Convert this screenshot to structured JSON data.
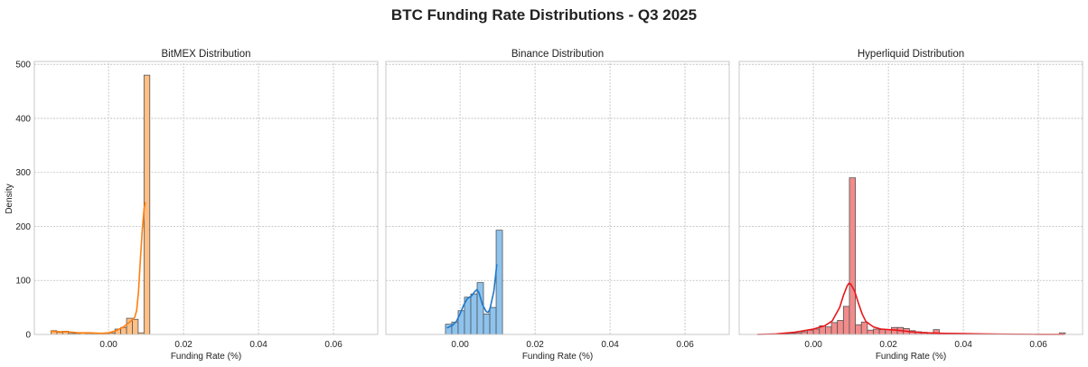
{
  "chart_data": {
    "title": "BTC Funding Rate Distributions - Q3 2025",
    "shared_ylabel": "Density",
    "xlim": [
      -0.0198,
      0.0718
    ],
    "ylim": [
      0,
      502
    ],
    "xticks": [
      0.0,
      0.02,
      0.04,
      0.06
    ],
    "xtick_labels": [
      "0.00",
      "0.02",
      "0.04",
      "0.06"
    ],
    "yticks": [
      0,
      100,
      200,
      300,
      400,
      500
    ],
    "ytick_labels": [
      "0",
      "100",
      "200",
      "300",
      "400",
      "500"
    ],
    "grid": true,
    "panels": [
      {
        "type": "bar",
        "title": "BitMEX Distribution",
        "xlabel": "Funding Rate (%)",
        "bar_color": "#ffbf86",
        "kde_color": "#ff7f0e",
        "bin_start": -0.01535,
        "bin_width": 0.00155,
        "values": [
          7,
          4,
          6,
          2,
          2,
          3,
          2,
          2,
          2,
          2,
          3,
          10,
          13,
          30,
          28,
          3,
          480
        ],
        "kde": {
          "x": [
            -0.0155,
            -0.013,
            -0.011,
            -0.008,
            -0.005,
            -0.002,
            0,
            0.002,
            0.004,
            0.006,
            0.007,
            0.0075,
            0.008,
            0.0085,
            0.009,
            0.0095,
            0.0098
          ],
          "y": [
            6,
            5,
            5,
            3,
            3,
            2,
            3,
            7,
            14,
            25,
            32,
            45,
            80,
            140,
            195,
            235,
            245
          ]
        }
      },
      {
        "type": "bar",
        "title": "Binance Distribution",
        "xlabel": "Funding Rate (%)",
        "bar_color": "#8ec3ee",
        "kde_color": "#1f78c8",
        "bin_start": -0.0039,
        "bin_width": 0.00169,
        "values": [
          19,
          23,
          44,
          69,
          75,
          96,
          38,
          50,
          193
        ],
        "kde": {
          "x": [
            -0.0035,
            -0.002,
            -0.001,
            0,
            0.001,
            0.002,
            0.003,
            0.004,
            0.0045,
            0.005,
            0.006,
            0.007,
            0.0075,
            0.008,
            0.009,
            0.0098
          ],
          "y": [
            12,
            17,
            24,
            38,
            55,
            67,
            71,
            80,
            83,
            78,
            55,
            42,
            41,
            48,
            80,
            130
          ]
        }
      },
      {
        "type": "bar",
        "title": "Hyperliquid Distribution",
        "xlabel": "Funding Rate (%)",
        "bar_color": "#f28b8b",
        "kde_color": "#e8171b",
        "bin_start": -0.0144,
        "bin_width": 0.0016,
        "values": [
          0.3,
          0.3,
          0.5,
          1,
          1.5,
          2,
          3,
          5,
          8,
          10,
          16,
          14,
          22,
          26,
          52,
          290,
          18,
          23,
          8,
          10,
          9,
          9,
          13,
          13,
          11,
          7,
          5,
          4,
          3,
          9,
          2,
          2,
          2,
          1.5,
          1.5,
          1,
          1,
          1,
          1,
          0.8,
          0.6,
          0.5,
          0.4,
          0.3,
          0.3,
          0.2,
          0.2,
          0.2,
          0.2,
          0.2,
          3
        ],
        "kde": {
          "x": [
            -0.015,
            -0.01,
            -0.005,
            0,
            0.003,
            0.005,
            0.007,
            0.008,
            0.009,
            0.0095,
            0.01,
            0.011,
            0.012,
            0.013,
            0.014,
            0.016,
            0.018,
            0.022,
            0.026,
            0.03,
            0.035,
            0.04,
            0.045,
            0.05,
            0.06,
            0.067
          ],
          "y": [
            0,
            1,
            4,
            10,
            16,
            25,
            50,
            72,
            90,
            95,
            93,
            80,
            58,
            38,
            24,
            14,
            10,
            8,
            5,
            3,
            2,
            1.5,
            1,
            0.5,
            0.2,
            0.1
          ]
        }
      }
    ]
  }
}
